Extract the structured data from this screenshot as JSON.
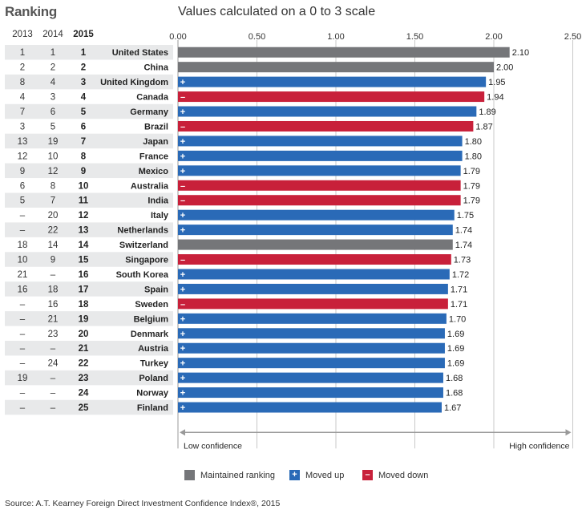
{
  "header": {
    "ranking_title": "Ranking",
    "scale_title": "Values calculated on a 0 to 3 scale",
    "col_2013": "2013",
    "col_2014": "2014",
    "col_2015": "2015"
  },
  "colors": {
    "maintained": "#757679",
    "up": "#2a6ab7",
    "down": "#c8203a",
    "row_stripe": "#e8e9ea",
    "grid": "#c8c8c8"
  },
  "chart_data": {
    "type": "bar",
    "orientation": "horizontal",
    "title": "Values calculated on a 0 to 3 scale",
    "xlim": [
      0,
      2.5
    ],
    "ticks": [
      "0.00",
      "0.50",
      "1.00",
      "1.50",
      "2.00",
      "2.50"
    ],
    "grid": true,
    "rows": [
      {
        "r2013": "1",
        "r2014": "1",
        "r2015": "1",
        "country": "United States",
        "value": 2.1,
        "label": "2.10",
        "status": "maintained"
      },
      {
        "r2013": "2",
        "r2014": "2",
        "r2015": "2",
        "country": "China",
        "value": 2.0,
        "label": "2.00",
        "status": "maintained"
      },
      {
        "r2013": "8",
        "r2014": "4",
        "r2015": "3",
        "country": "United Kingdom",
        "value": 1.95,
        "label": "1.95",
        "status": "up"
      },
      {
        "r2013": "4",
        "r2014": "3",
        "r2015": "4",
        "country": "Canada",
        "value": 1.94,
        "label": "1.94",
        "status": "down"
      },
      {
        "r2013": "7",
        "r2014": "6",
        "r2015": "5",
        "country": "Germany",
        "value": 1.89,
        "label": "1.89",
        "status": "up"
      },
      {
        "r2013": "3",
        "r2014": "5",
        "r2015": "6",
        "country": "Brazil",
        "value": 1.87,
        "label": "1.87",
        "status": "down"
      },
      {
        "r2013": "13",
        "r2014": "19",
        "r2015": "7",
        "country": "Japan",
        "value": 1.8,
        "label": "1.80",
        "status": "up"
      },
      {
        "r2013": "12",
        "r2014": "10",
        "r2015": "8",
        "country": "France",
        "value": 1.8,
        "label": "1.80",
        "status": "up"
      },
      {
        "r2013": "9",
        "r2014": "12",
        "r2015": "9",
        "country": "Mexico",
        "value": 1.79,
        "label": "1.79",
        "status": "up"
      },
      {
        "r2013": "6",
        "r2014": "8",
        "r2015": "10",
        "country": "Australia",
        "value": 1.79,
        "label": "1.79",
        "status": "down"
      },
      {
        "r2013": "5",
        "r2014": "7",
        "r2015": "11",
        "country": "India",
        "value": 1.79,
        "label": "1.79",
        "status": "down"
      },
      {
        "r2013": "–",
        "r2014": "20",
        "r2015": "12",
        "country": "Italy",
        "value": 1.75,
        "label": "1.75",
        "status": "up"
      },
      {
        "r2013": "–",
        "r2014": "22",
        "r2015": "13",
        "country": "Netherlands",
        "value": 1.74,
        "label": "1.74",
        "status": "up"
      },
      {
        "r2013": "18",
        "r2014": "14",
        "r2015": "14",
        "country": "Switzerland",
        "value": 1.74,
        "label": "1.74",
        "status": "maintained"
      },
      {
        "r2013": "10",
        "r2014": "9",
        "r2015": "15",
        "country": "Singapore",
        "value": 1.73,
        "label": "1.73",
        "status": "down"
      },
      {
        "r2013": "21",
        "r2014": "–",
        "r2015": "16",
        "country": "South Korea",
        "value": 1.72,
        "label": "1.72",
        "status": "up"
      },
      {
        "r2013": "16",
        "r2014": "18",
        "r2015": "17",
        "country": "Spain",
        "value": 1.71,
        "label": "1.71",
        "status": "up"
      },
      {
        "r2013": "–",
        "r2014": "16",
        "r2015": "18",
        "country": "Sweden",
        "value": 1.71,
        "label": "1.71",
        "status": "down"
      },
      {
        "r2013": "–",
        "r2014": "21",
        "r2015": "19",
        "country": "Belgium",
        "value": 1.7,
        "label": "1.70",
        "status": "up"
      },
      {
        "r2013": "–",
        "r2014": "23",
        "r2015": "20",
        "country": "Denmark",
        "value": 1.69,
        "label": "1.69",
        "status": "up"
      },
      {
        "r2013": "–",
        "r2014": "–",
        "r2015": "21",
        "country": "Austria",
        "value": 1.69,
        "label": "1.69",
        "status": "up"
      },
      {
        "r2013": "–",
        "r2014": "24",
        "r2015": "22",
        "country": "Turkey",
        "value": 1.69,
        "label": "1.69",
        "status": "up"
      },
      {
        "r2013": "19",
        "r2014": "–",
        "r2015": "23",
        "country": "Poland",
        "value": 1.68,
        "label": "1.68",
        "status": "up"
      },
      {
        "r2013": "–",
        "r2014": "–",
        "r2015": "24",
        "country": "Norway",
        "value": 1.68,
        "label": "1.68",
        "status": "up"
      },
      {
        "r2013": "–",
        "r2014": "–",
        "r2015": "25",
        "country": "Finland",
        "value": 1.67,
        "label": "1.67",
        "status": "up"
      }
    ],
    "confidence_low": "Low confidence",
    "confidence_high": "High confidence"
  },
  "legend": {
    "maintained": "Maintained ranking",
    "up": "Moved up",
    "down": "Moved down",
    "up_glyph": "+",
    "down_glyph": "–"
  },
  "source": "Source: A.T. Kearney Foreign Direct Investment Confidence Index®, 2015"
}
